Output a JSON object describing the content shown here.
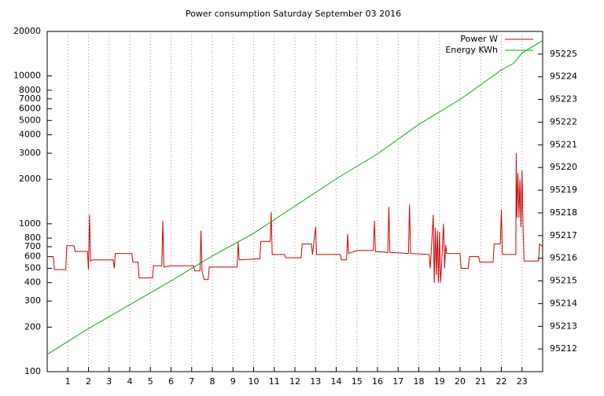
{
  "chart_data": {
    "type": "line",
    "title": "Power consumption Saturday September 03 2016",
    "xlim": [
      0,
      24
    ],
    "xticks": [
      1,
      2,
      3,
      4,
      5,
      6,
      7,
      8,
      9,
      10,
      11,
      12,
      13,
      14,
      15,
      16,
      17,
      18,
      19,
      20,
      21,
      22,
      23
    ],
    "ylim": [
      100,
      20000
    ],
    "log_y": true,
    "yticks": [
      100,
      200,
      300,
      400,
      500,
      600,
      700,
      800,
      1000,
      2000,
      3000,
      4000,
      5000,
      6000,
      7000,
      8000,
      10000,
      20000
    ],
    "y2lim": [
      95211,
      95226
    ],
    "y2ticks": [
      95212,
      95213,
      95214,
      95215,
      95216,
      95217,
      95218,
      95219,
      95220,
      95221,
      95222,
      95223,
      95224,
      95225
    ],
    "grid": "x",
    "legend": "top-right",
    "series": [
      {
        "name": "Power W",
        "color": "#cc0000",
        "x": [
          0,
          0.3,
          0.35,
          0.9,
          0.95,
          1.3,
          1.35,
          1.95,
          2.0,
          2.05,
          2.1,
          2.2,
          3.2,
          3.25,
          3.3,
          4.1,
          4.15,
          4.4,
          4.45,
          5.1,
          5.15,
          5.55,
          5.6,
          5.65,
          6.0,
          7.1,
          7.15,
          7.4,
          7.45,
          7.5,
          7.6,
          7.8,
          7.85,
          9.2,
          9.25,
          9.3,
          10.3,
          10.35,
          10.8,
          10.85,
          10.9,
          11.5,
          11.55,
          12.3,
          12.35,
          12.8,
          12.85,
          13.0,
          13.05,
          14.2,
          14.25,
          14.5,
          14.55,
          14.6,
          15.0,
          15.8,
          15.85,
          15.9,
          16.5,
          16.55,
          16.6,
          17.5,
          17.55,
          17.6,
          18.5,
          18.55,
          18.6,
          18.7,
          18.75,
          18.8,
          18.85,
          18.9,
          18.95,
          19.0,
          19.05,
          19.1,
          19.2,
          19.25,
          19.3,
          19.35,
          20.0,
          20.05,
          20.4,
          20.45,
          20.9,
          20.95,
          21.6,
          21.65,
          21.95,
          22.0,
          22.05,
          22.7,
          22.72,
          22.75,
          22.8,
          22.85,
          22.9,
          22.95,
          23.0,
          23.05,
          23.1,
          23.8,
          23.85,
          24
        ],
        "values": [
          600,
          600,
          490,
          490,
          710,
          710,
          650,
          650,
          490,
          1150,
          560,
          570,
          570,
          500,
          630,
          630,
          550,
          550,
          430,
          430,
          520,
          520,
          1050,
          510,
          520,
          520,
          480,
          480,
          900,
          480,
          420,
          420,
          510,
          510,
          750,
          570,
          580,
          760,
          760,
          1200,
          620,
          620,
          590,
          590,
          730,
          730,
          620,
          950,
          620,
          620,
          570,
          570,
          850,
          630,
          660,
          660,
          1050,
          650,
          640,
          1300,
          640,
          630,
          1350,
          630,
          620,
          500,
          640,
          1150,
          400,
          940,
          450,
          900,
          400,
          880,
          400,
          520,
          1000,
          500,
          720,
          630,
          630,
          500,
          500,
          600,
          600,
          550,
          550,
          730,
          730,
          1250,
          620,
          620,
          3000,
          1100,
          2200,
          1100,
          2000,
          950,
          2300,
          950,
          560,
          560,
          730,
          700
        ]
      },
      {
        "name": "Energy KWh",
        "color": "#00aa00",
        "axis": "y2",
        "x": [
          0,
          2,
          4,
          6,
          8,
          10,
          12,
          14,
          16,
          18,
          20,
          22,
          22.6,
          23,
          24
        ],
        "values": [
          95211.76,
          95212.9,
          95213.95,
          95215.0,
          95216.1,
          95217.1,
          95218.3,
          95219.5,
          95220.6,
          95221.9,
          95223.0,
          95224.3,
          95224.6,
          95225.05,
          95225.6
        ]
      }
    ]
  }
}
